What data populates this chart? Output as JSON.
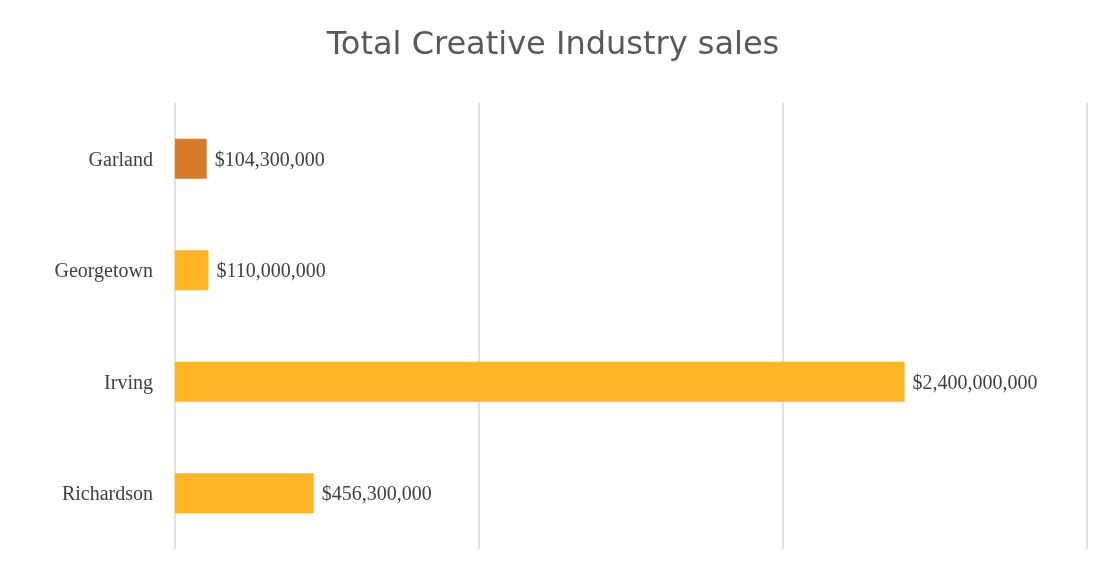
{
  "chart_data": {
    "type": "bar",
    "orientation": "horizontal",
    "title": "Total Creative Industry sales",
    "categories": [
      "Garland",
      "Georgetown",
      "Irving",
      "Richardson"
    ],
    "values": [
      104300000,
      110000000,
      2400000000,
      456300000
    ],
    "colors": [
      "#d67b27",
      "#fdb523",
      "#fdb523",
      "#fdb523"
    ],
    "value_labels": [
      "$104,300,000",
      "$110,000,000",
      "$2,400,000,000",
      "$456,300,000"
    ],
    "xlim": [
      0,
      3000000000
    ],
    "xticks": [
      {
        "value": 0,
        "label": null
      },
      {
        "value": 1000000000,
        "label": null
      },
      {
        "value": 2000000000,
        "label": null
      },
      {
        "value": 3000000000,
        "label": null
      }
    ],
    "tick_labels": "y",
    "grid": "x"
  }
}
